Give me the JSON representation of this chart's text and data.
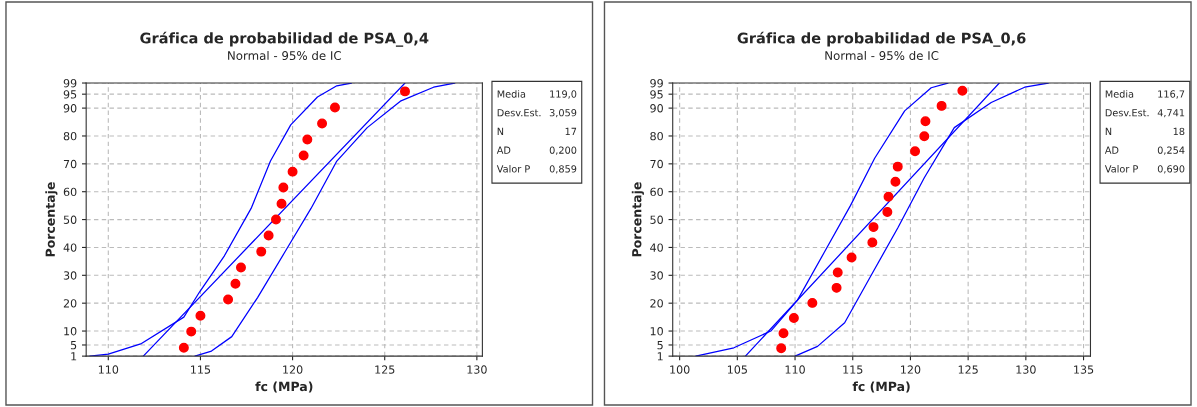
{
  "chart_data": [
    {
      "type": "scatter",
      "title": "Gráfica de probabilidad de PSA_0,4",
      "subtitle": "Normal - 95% de IC",
      "xlabel": "fc (MPa)",
      "ylabel": "Porcentaje",
      "series": [
        {
          "type": "scatter",
          "marker": "circle",
          "color": "#ff0000",
          "x": [
            114.1,
            114.5,
            115.0,
            116.5,
            116.9,
            117.2,
            118.3,
            118.7,
            119.1,
            119.4,
            119.5,
            120.0,
            120.6,
            120.8,
            121.6,
            122.3,
            126.1
          ],
          "values": [
            4.0,
            9.8,
            15.5,
            21.3,
            27.0,
            32.8,
            38.5,
            44.3,
            50.0,
            55.7,
            61.5,
            67.2,
            73.0,
            78.7,
            84.5,
            90.2,
            96.0
          ]
        },
        {
          "type": "line",
          "color": "#0000ff",
          "x": [
            111.9,
            126.1
          ],
          "values": [
            1,
            99
          ]
        },
        {
          "type": "line",
          "color": "#0000ff",
          "x": [
            109.0,
            110.0,
            111.8,
            114.1,
            114.95,
            116.3,
            117.75,
            118.8,
            119.9,
            121.35,
            122.4,
            123.2
          ],
          "values": [
            1,
            1.7,
            5.5,
            15,
            24,
            37,
            54,
            71,
            84,
            94,
            98,
            99
          ]
        },
        {
          "type": "line",
          "color": "#0000ff",
          "x": [
            114.7,
            115.6,
            116.7,
            118.1,
            119.55,
            121.0,
            122.4,
            124.05,
            125.85,
            127.65,
            128.8
          ],
          "values": [
            1,
            2.8,
            8,
            22,
            38,
            54,
            71,
            83,
            92.5,
            97.5,
            99
          ]
        }
      ],
      "xlim": [
        108.8,
        130.3
      ],
      "xticks": [
        110,
        115,
        120,
        125,
        130
      ],
      "ylim": [
        1,
        99
      ],
      "yticks": [
        1,
        5,
        10,
        20,
        30,
        40,
        50,
        60,
        70,
        80,
        90,
        95,
        99
      ],
      "grid": true,
      "legend": false,
      "annotations": [
        "Media 119,0",
        "Desv.Est. 3,059",
        "N 17",
        "AD 0,200",
        "Valor P 0,859"
      ]
    },
    {
      "type": "scatter",
      "title": "Gráfica de probabilidad de PSA_0,6",
      "subtitle": "Normal - 95% de IC",
      "xlabel": "fc (MPa)",
      "ylabel": "Porcentaje",
      "series": [
        {
          "type": "scatter",
          "marker": "circle",
          "color": "#ff0000",
          "x": [
            108.8,
            109.0,
            109.9,
            111.5,
            113.6,
            113.7,
            114.9,
            116.7,
            116.8,
            118.0,
            118.1,
            118.7,
            118.9,
            120.4,
            121.2,
            121.3,
            122.7,
            124.5
          ],
          "values": [
            3.8,
            9.2,
            14.7,
            20.1,
            25.5,
            31.0,
            36.4,
            41.8,
            47.3,
            52.7,
            58.2,
            63.6,
            69.0,
            74.5,
            79.9,
            85.3,
            90.8,
            96.2
          ]
        },
        {
          "type": "line",
          "color": "#0000ff",
          "x": [
            105.7,
            127.7
          ],
          "values": [
            1,
            99
          ]
        },
        {
          "type": "line",
          "color": "#0000ff",
          "x": [
            101.4,
            104.7,
            107.9,
            110.2,
            112.5,
            114.8,
            116.9,
            119.5,
            121.8,
            123.25
          ],
          "values": [
            1,
            4,
            10,
            21,
            38,
            55,
            72,
            89,
            97.3,
            99
          ]
        },
        {
          "type": "line",
          "color": "#0000ff",
          "x": [
            110.0,
            111.95,
            114.3,
            116.6,
            118.9,
            121.2,
            123.8,
            127.0,
            129.9,
            131.95
          ],
          "values": [
            1,
            4.5,
            13,
            30,
            47,
            65,
            83,
            92,
            97.5,
            99
          ]
        }
      ],
      "xlim": [
        99.4,
        135.6
      ],
      "xticks": [
        100,
        105,
        110,
        115,
        120,
        125,
        130,
        135
      ],
      "ylim": [
        1,
        99
      ],
      "yticks": [
        1,
        5,
        10,
        20,
        30,
        40,
        50,
        60,
        70,
        80,
        90,
        95,
        99
      ],
      "grid": true,
      "legend": false,
      "annotations": [
        "Media 116,7",
        "Desv.Est. 4,741",
        "N 18",
        "AD 0,254",
        "Valor P 0,690"
      ]
    }
  ]
}
